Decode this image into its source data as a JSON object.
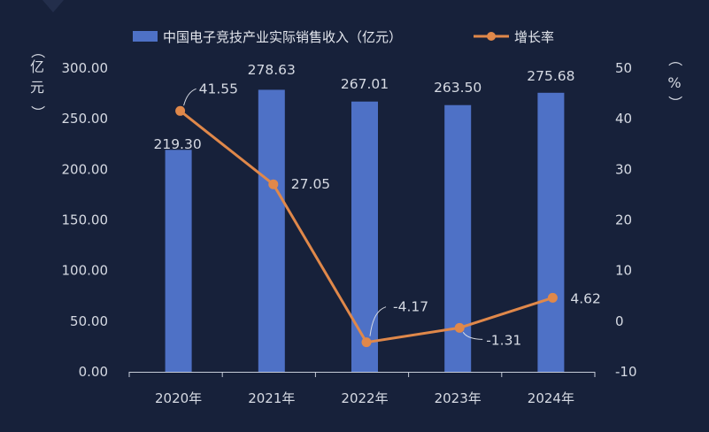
{
  "chart_data": {
    "type": "bar",
    "categories": [
      "2020年",
      "2021年",
      "2022年",
      "2023年",
      "2024年"
    ],
    "series": [
      {
        "name": "中国电子竞技产业实际销售收入（亿元）",
        "kind": "bar",
        "axis": "left",
        "values": [
          219.3,
          278.63,
          267.01,
          263.5,
          275.68
        ],
        "value_labels": [
          "219.30",
          "278.63",
          "267.01",
          "263.50",
          "275.68"
        ],
        "color": "#4e71c6"
      },
      {
        "name": "增长率",
        "kind": "line",
        "axis": "right",
        "values": [
          41.55,
          27.05,
          -4.17,
          -1.31,
          4.62
        ],
        "value_labels": [
          "41.55",
          "27.05",
          "-4.17",
          "-1.31",
          "4.62"
        ],
        "color": "#e0884a"
      }
    ],
    "y_left": {
      "label_chars": [
        "（",
        "亿",
        "元",
        "）"
      ],
      "ylim": [
        0,
        300
      ],
      "ticks": [
        0,
        50,
        100,
        150,
        200,
        250,
        300
      ],
      "tick_labels": [
        "0.00",
        "50.00",
        "100.00",
        "150.00",
        "200.00",
        "250.00",
        "300.00"
      ]
    },
    "y_right": {
      "label_chars": [
        "（",
        "%",
        "）"
      ],
      "ylim": [
        -10,
        50
      ],
      "ticks": [
        -10,
        0,
        10,
        20,
        30,
        40,
        50
      ],
      "tick_labels": [
        "-10",
        "0",
        "10",
        "20",
        "30",
        "40",
        "50"
      ]
    },
    "legend": {
      "position": "top"
    },
    "grid": false,
    "background": "#17213a"
  }
}
